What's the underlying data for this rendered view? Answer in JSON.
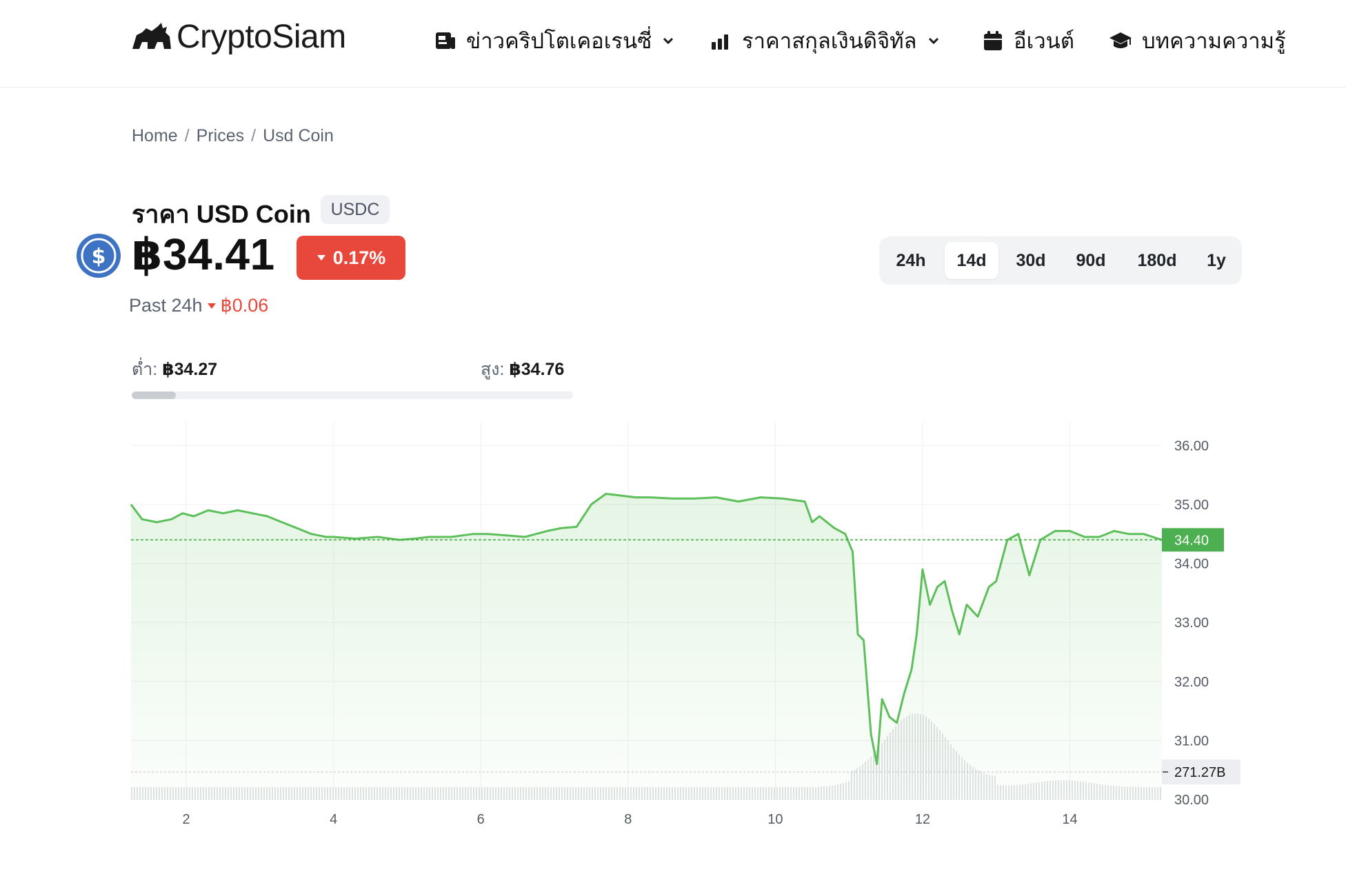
{
  "header": {
    "logo_text": "CryptoSiam",
    "nav": [
      {
        "label": "ข่าวคริปโตเคอเรนซี่",
        "icon": "news-icon",
        "dropdown": true
      },
      {
        "label": "ราคาสกุลเงินดิจิทัล",
        "icon": "bar-chart-icon",
        "dropdown": true
      },
      {
        "label": "อีเวนต์",
        "icon": "calendar-icon",
        "dropdown": false
      },
      {
        "label": "บทความความรู้",
        "icon": "graduation-cap-icon",
        "dropdown": false
      }
    ]
  },
  "breadcrumb": [
    "Home",
    "Prices",
    "Usd Coin"
  ],
  "breadcrumb_sep": "/",
  "coin": {
    "title": "ราคา USD Coin",
    "ticker": "USDC",
    "icon": "usdc-coin-icon",
    "price": "฿34.41",
    "change_pct": "0.17%",
    "change_direction": "down",
    "past24_label": "Past 24h",
    "past24_value": "฿0.06"
  },
  "range": {
    "low_label": "ต่ำ:",
    "low_value": "฿34.27",
    "high_label": "สูง:",
    "high_value": "฿34.76",
    "position_fraction": 0.1
  },
  "tabs": [
    {
      "label": "24h",
      "active": false
    },
    {
      "label": "14d",
      "active": true
    },
    {
      "label": "30d",
      "active": false
    },
    {
      "label": "90d",
      "active": false
    },
    {
      "label": "180d",
      "active": false
    },
    {
      "label": "1y",
      "active": false
    }
  ],
  "colors": {
    "accent_negative": "#e8483b",
    "line": "#5cbf5a",
    "label_bg": "#4caf50",
    "volume_label_bg": "#eceef1"
  },
  "chart_data": {
    "type": "line",
    "x_ticks": [
      "2",
      "4",
      "6",
      "8",
      "10",
      "12",
      "14"
    ],
    "x_tick_values": [
      2,
      4,
      6,
      8,
      10,
      12,
      14
    ],
    "y_ticks": [
      "36.00",
      "35.00",
      "34.00",
      "33.00",
      "32.00",
      "31.00",
      "30.00"
    ],
    "ylim": [
      30,
      36.4
    ],
    "xlim": [
      1.25,
      15.25
    ],
    "current_price_label": "34.40",
    "current_price": 34.4,
    "volume_label": "271.27B",
    "series": [
      {
        "x": [
          1.25,
          1.4,
          1.6,
          1.8,
          1.95,
          2.1,
          2.3,
          2.5,
          2.7,
          2.9,
          3.1,
          3.3,
          3.5,
          3.7,
          3.9,
          4.0,
          4.3,
          4.6,
          4.9,
          5.1,
          5.3,
          5.6,
          5.9,
          6.1,
          6.3,
          6.6,
          6.9,
          7.1,
          7.3,
          7.5,
          7.7,
          7.9,
          8.1,
          8.3,
          8.6,
          8.9,
          9.2,
          9.5,
          9.8,
          10.1,
          10.4,
          10.5,
          10.6,
          10.8,
          10.95,
          11.05,
          11.12,
          11.2,
          11.3,
          11.38,
          11.45,
          11.55,
          11.65,
          11.75,
          11.85,
          11.92,
          12.0,
          12.1,
          12.2,
          12.3,
          12.4,
          12.5,
          12.6,
          12.75,
          12.9,
          13.0,
          13.15,
          13.3,
          13.45,
          13.6,
          13.8,
          14.0,
          14.2,
          14.4,
          14.6,
          14.8,
          15.0,
          15.25
        ],
        "y": [
          35.0,
          34.75,
          34.7,
          34.75,
          34.85,
          34.8,
          34.9,
          34.85,
          34.9,
          34.85,
          34.8,
          34.7,
          34.6,
          34.5,
          34.45,
          34.45,
          34.42,
          34.45,
          34.4,
          34.42,
          34.45,
          34.45,
          34.5,
          34.5,
          34.48,
          34.45,
          34.55,
          34.6,
          34.62,
          35.0,
          35.18,
          35.15,
          35.12,
          35.12,
          35.1,
          35.1,
          35.12,
          35.05,
          35.12,
          35.1,
          35.05,
          34.7,
          34.8,
          34.6,
          34.5,
          34.2,
          32.8,
          32.7,
          31.1,
          30.6,
          31.7,
          31.4,
          31.3,
          31.8,
          32.2,
          32.8,
          33.9,
          33.3,
          33.6,
          33.7,
          33.2,
          32.8,
          33.3,
          33.1,
          33.6,
          33.7,
          34.4,
          34.5,
          33.8,
          34.4,
          34.55,
          34.55,
          34.45,
          34.45,
          34.55,
          34.5,
          34.5,
          34.4
        ]
      }
    ],
    "volume": {
      "baseline_label": "271.27B"
    }
  }
}
